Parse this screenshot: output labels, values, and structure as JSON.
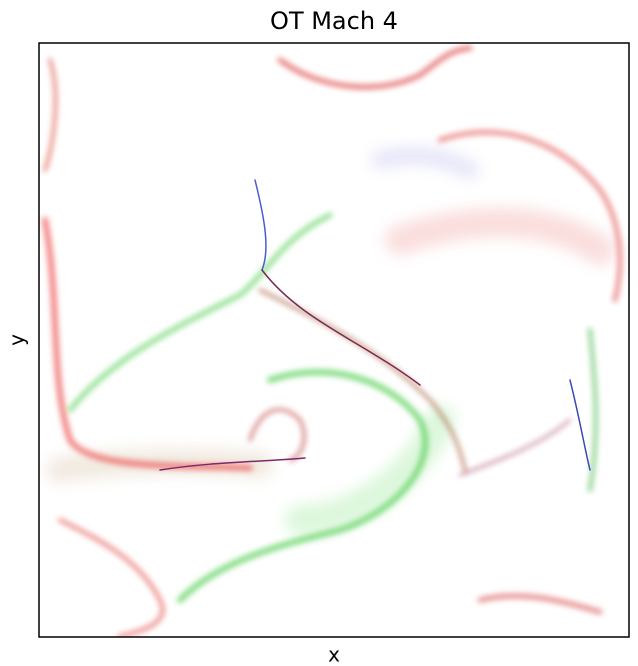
{
  "chart_data": {
    "type": "image",
    "title": "OT Mach 4",
    "xlabel": "x",
    "ylabel": "y"
  }
}
